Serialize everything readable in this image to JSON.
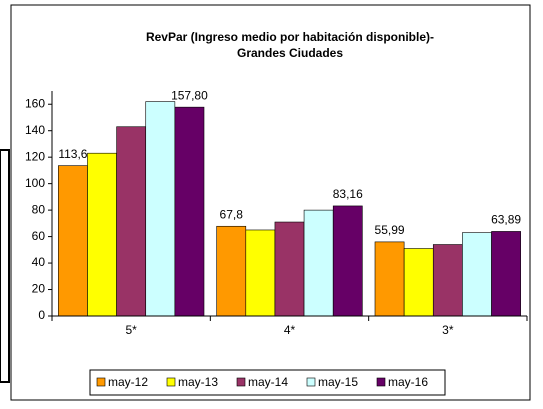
{
  "chart_data": {
    "type": "bar",
    "title": [
      "RevPar (Ingreso medio por habitación disponible)-",
      "Grandes Ciudades"
    ],
    "categories": [
      "5*",
      "4*",
      "3*"
    ],
    "series": [
      {
        "name": "may-12",
        "color": "#ff9900",
        "values": [
          113.6,
          67.8,
          55.99
        ],
        "value_labels": [
          "113,6",
          "67,8",
          "55,99"
        ]
      },
      {
        "name": "may-13",
        "color": "#ffff00",
        "values": [
          123,
          65,
          51
        ]
      },
      {
        "name": "may-14",
        "color": "#993366",
        "values": [
          143,
          71,
          54
        ]
      },
      {
        "name": "may-15",
        "color": "#ccffff",
        "values": [
          162,
          80,
          63
        ]
      },
      {
        "name": "may-16",
        "color": "#660066",
        "values": [
          157.8,
          83.16,
          63.89
        ],
        "value_labels": [
          "157,80",
          "83,16",
          "63,89"
        ]
      }
    ],
    "ylim": [
      0,
      170
    ],
    "yticks": [
      0,
      20,
      40,
      60,
      80,
      100,
      120,
      140,
      160
    ],
    "legend": "bottom"
  }
}
